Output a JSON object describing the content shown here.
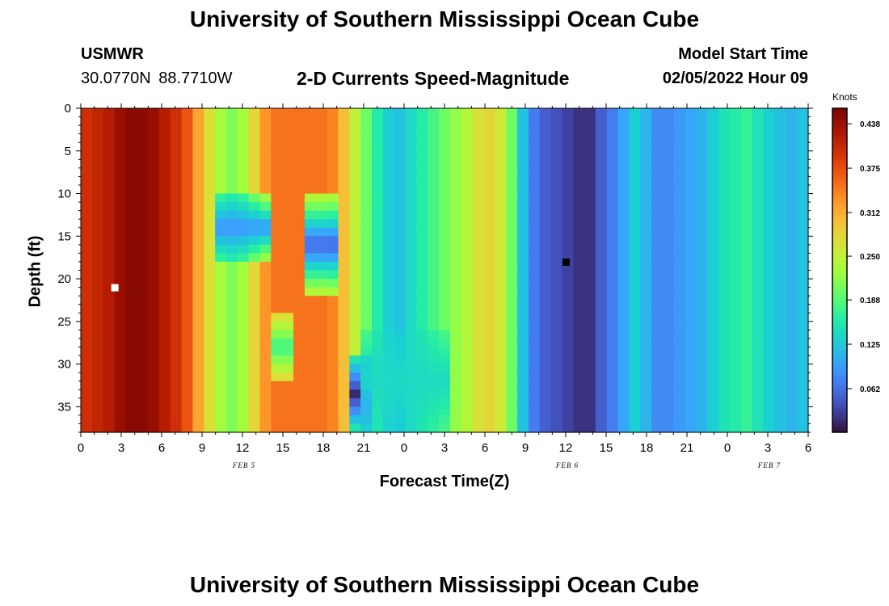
{
  "header": {
    "title": "University of Southern Mississippi Ocean Cube",
    "station": "USMWR",
    "coordinates": "30.0770N  88.7710W",
    "subtitle": "2-D Currents Speed-Magnitude",
    "model_start_label": "Model Start Time",
    "model_start_value": "02/05/2022 Hour 09"
  },
  "footer": {
    "title": "University of Southern Mississippi Ocean Cube"
  },
  "chart_data": {
    "type": "heatmap",
    "xlabel": "Forecast Time(Z)",
    "ylabel": "Depth (ft)",
    "x_tick_labels": [
      "0",
      "3",
      "6",
      "9",
      "12",
      "15",
      "18",
      "21",
      "0",
      "3",
      "6",
      "9",
      "12",
      "15",
      "18",
      "21",
      "0",
      "3",
      "6"
    ],
    "x_range_hours": [
      0,
      54
    ],
    "date_labels": [
      {
        "label": "FEB 5",
        "hour": 12
      },
      {
        "label": "FEB 6",
        "hour": 36
      },
      {
        "label": "FEB 7",
        "hour": 51
      }
    ],
    "y_tick_labels": [
      "0",
      "5",
      "10",
      "15",
      "20",
      "25",
      "30",
      "35"
    ],
    "y_range_ft": [
      0,
      38
    ],
    "y_inverted": true,
    "colorbar": {
      "unit": "Knots",
      "tick_labels": [
        "0.438",
        "0.375",
        "0.312",
        "0.250",
        "0.188",
        "0.125",
        "0.062"
      ],
      "min": 0.0,
      "max": 0.46
    },
    "column_speeds_knots": [
      0.4,
      0.41,
      0.42,
      0.44,
      0.45,
      0.45,
      0.44,
      0.42,
      0.4,
      0.37,
      0.32,
      0.27,
      0.23,
      0.21,
      0.23,
      0.28,
      0.33,
      0.35,
      0.35,
      0.35,
      0.35,
      0.35,
      0.34,
      0.3,
      0.25,
      0.2,
      0.16,
      0.13,
      0.12,
      0.14,
      0.16,
      0.18,
      0.2,
      0.22,
      0.24,
      0.27,
      0.28,
      0.26,
      0.2,
      0.12,
      0.07,
      0.05,
      0.04,
      0.03,
      0.02,
      0.02,
      0.05,
      0.07,
      0.1,
      0.13,
      0.11,
      0.08,
      0.08,
      0.09,
      0.1,
      0.11,
      0.13,
      0.15,
      0.16,
      0.17,
      0.15,
      0.13,
      0.12,
      0.11,
      0.12
    ],
    "depth_features": [
      {
        "hour_from": 10,
        "hour_to": 14,
        "depth_from": 10,
        "depth_to": 18,
        "speed_knots": 0.085
      },
      {
        "hour_from": 17,
        "hour_to": 19,
        "depth_from": 10,
        "depth_to": 22,
        "speed_knots": 0.05
      },
      {
        "hour_from": 14,
        "hour_to": 16,
        "depth_from": 24,
        "depth_to": 32,
        "speed_knots": 0.17
      },
      {
        "hour_from": 20,
        "hour_to": 22,
        "depth_from": 29,
        "depth_to": 38,
        "speed_knots": 0.015
      },
      {
        "hour_from": 21,
        "hour_to": 27,
        "depth_from": 26,
        "depth_to": 38,
        "speed_knots": 0.14
      }
    ],
    "markers": [
      {
        "hour": 2.5,
        "depth_ft": 21,
        "color": "#ffffff"
      },
      {
        "hour": 36,
        "depth_ft": 18,
        "color": "#000000"
      }
    ]
  }
}
